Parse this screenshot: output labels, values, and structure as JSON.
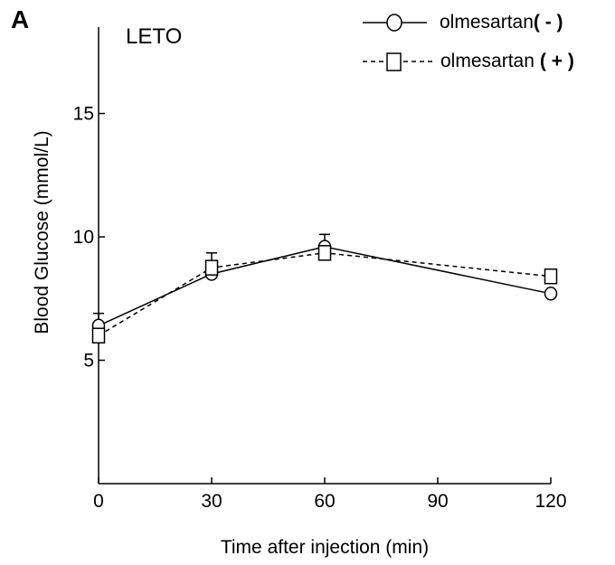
{
  "chart_data": {
    "type": "line",
    "panel_label": "A",
    "subtitle": "LETO",
    "xlabel": "Time after injection (min)",
    "ylabel": "Blood Glucose (mmol/L)",
    "x": [
      0,
      30,
      60,
      120
    ],
    "x_ticks": [
      "0",
      "30",
      "60",
      "90",
      "120"
    ],
    "x_tick_values": [
      0,
      30,
      60,
      90,
      120
    ],
    "y_ticks": [
      "5",
      "10",
      "15"
    ],
    "y_tick_values": [
      5,
      10,
      15
    ],
    "xlim": [
      0,
      120
    ],
    "ylim": [
      0,
      18.5
    ],
    "grid": false,
    "legend_position": "top-right",
    "series": [
      {
        "name": "olmesartan",
        "name_suffix": "( - )",
        "marker": "circle",
        "line_style": "solid",
        "color": "#000000",
        "values": [
          6.4,
          8.5,
          9.6,
          7.7
        ],
        "error_upper": [
          0.5,
          0.0,
          0.5,
          0.0
        ]
      },
      {
        "name": "olmesartan",
        "name_suffix": "( + )",
        "marker": "square",
        "line_style": "dashed",
        "color": "#000000",
        "values": [
          6.0,
          8.75,
          9.35,
          8.4
        ],
        "error_upper": [
          0.0,
          0.6,
          0.0,
          0.0
        ]
      }
    ]
  }
}
